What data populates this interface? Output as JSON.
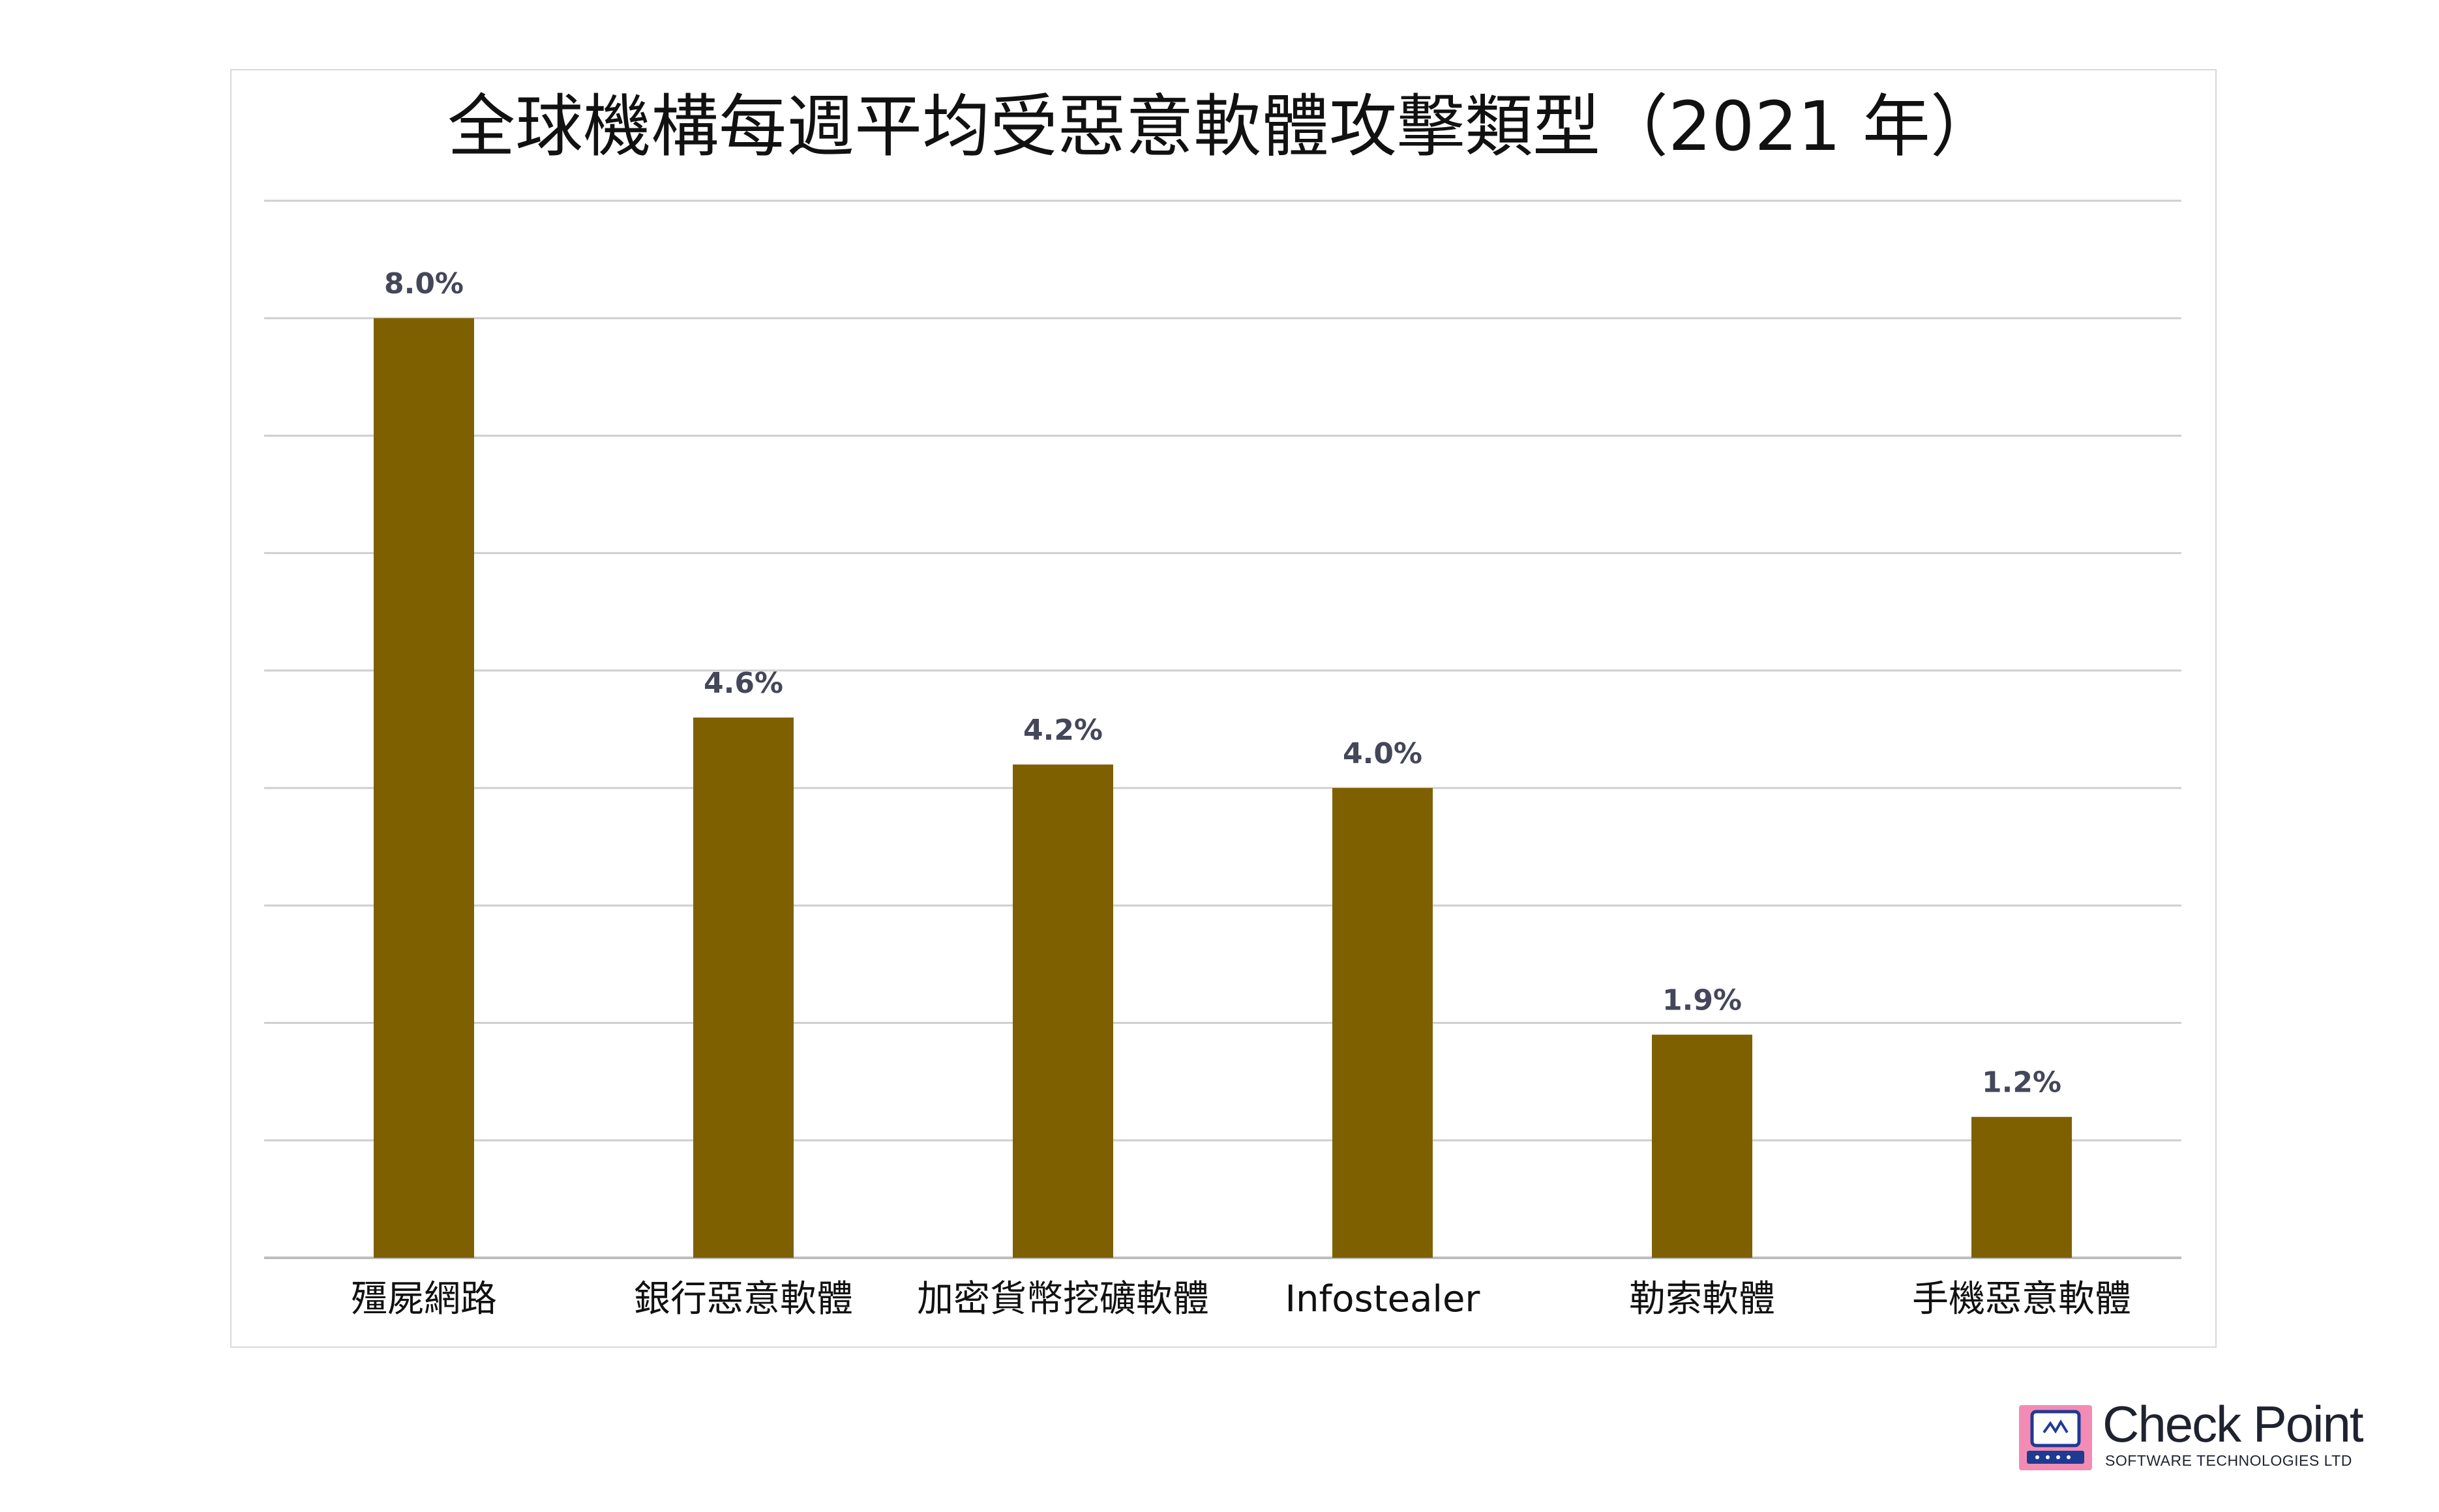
{
  "chart_data": {
    "type": "bar",
    "title": "全球機構每週平均受惡意軟體攻擊類型（2021 年）",
    "categories": [
      "殭屍網路",
      "銀行惡意軟體",
      "加密貨幣挖礦軟體",
      "Infostealer",
      "勒索軟體",
      "手機惡意軟體"
    ],
    "values": [
      8.0,
      4.6,
      4.2,
      4.0,
      1.9,
      1.2
    ],
    "data_labels": [
      "8.0%",
      "4.6%",
      "4.2%",
      "4.0%",
      "1.9%",
      "1.2%"
    ],
    "ylim": [
      0,
      9
    ],
    "grid": true,
    "bar_color": "#7f6000"
  },
  "logo": {
    "name": "Check Point",
    "tagline": "SOFTWARE TECHNOLOGIES LTD",
    "box_color": "#f28cb4"
  }
}
